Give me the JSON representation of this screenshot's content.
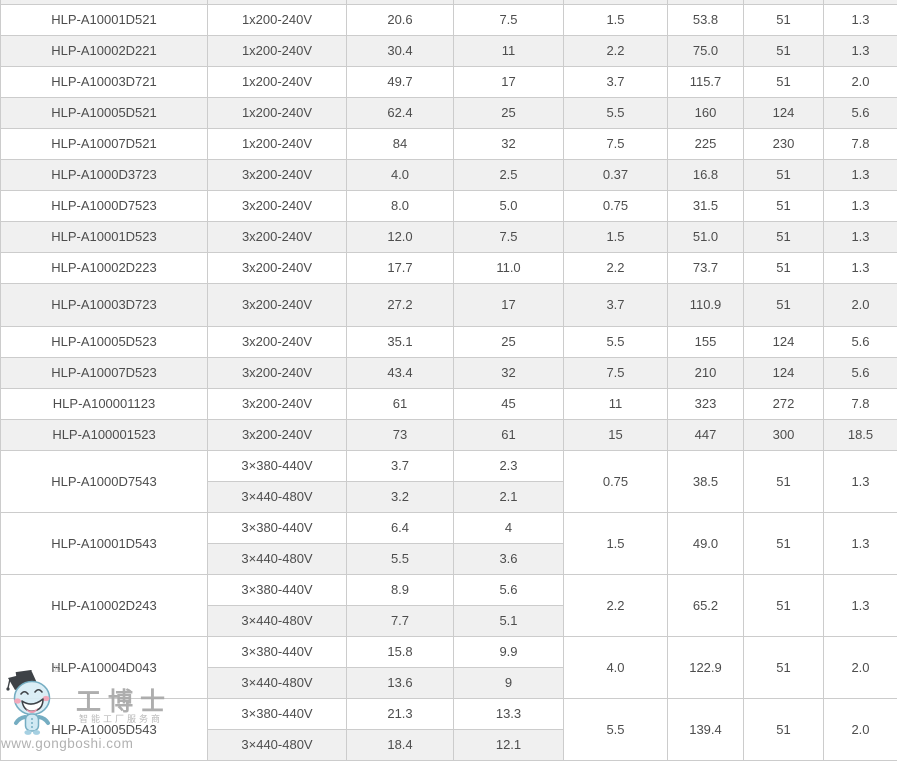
{
  "watermark": {
    "brand": "工博士",
    "slogan": "智能工厂服务商",
    "url": "www.gongboshi.com",
    "registered_mark": "®"
  },
  "table": {
    "rows": [
      {
        "type": "single",
        "model": "HLP-A10001D521",
        "voltage": "1x200-240V",
        "values": [
          "20.6",
          "7.5",
          "1.5",
          "53.8",
          "51",
          "1.3"
        ]
      },
      {
        "type": "single",
        "model": "HLP-A10002D221",
        "voltage": "1x200-240V",
        "values": [
          "30.4",
          "11",
          "2.2",
          "75.0",
          "51",
          "1.3"
        ]
      },
      {
        "type": "single",
        "model": "HLP-A10003D721",
        "voltage": "1x200-240V",
        "values": [
          "49.7",
          "17",
          "3.7",
          "115.7",
          "51",
          "2.0"
        ]
      },
      {
        "type": "single",
        "model": "HLP-A10005D521",
        "voltage": "1x200-240V",
        "values": [
          "62.4",
          "25",
          "5.5",
          "160",
          "124",
          "5.6"
        ]
      },
      {
        "type": "single",
        "model": "HLP-A10007D521",
        "voltage": "1x200-240V",
        "values": [
          "84",
          "32",
          "7.5",
          "225",
          "230",
          "7.8"
        ]
      },
      {
        "type": "single",
        "model": "HLP-A1000D3723",
        "voltage": "3x200-240V",
        "values": [
          "4.0",
          "2.5",
          "0.37",
          "16.8",
          "51",
          "1.3"
        ]
      },
      {
        "type": "single",
        "model": "HLP-A1000D7523",
        "voltage": "3x200-240V",
        "values": [
          "8.0",
          "5.0",
          "0.75",
          "31.5",
          "51",
          "1.3"
        ]
      },
      {
        "type": "single",
        "model": "HLP-A10001D523",
        "voltage": "3x200-240V",
        "values": [
          "12.0",
          "7.5",
          "1.5",
          "51.0",
          "51",
          "1.3"
        ]
      },
      {
        "type": "single",
        "model": "HLP-A10002D223",
        "voltage": "3x200-240V",
        "values": [
          "17.7",
          "11.0",
          "2.2",
          "73.7",
          "51",
          "1.3"
        ]
      },
      {
        "type": "single",
        "model": "HLP-A10003D723",
        "voltage": "3x200-240V",
        "values": [
          "27.2",
          "17",
          "3.7",
          "110.9",
          "51",
          "2.0"
        ],
        "highlight": true
      },
      {
        "type": "single",
        "model": "HLP-A10005D523",
        "voltage": "3x200-240V",
        "values": [
          "35.1",
          "25",
          "5.5",
          "155",
          "124",
          "5.6"
        ]
      },
      {
        "type": "single",
        "model": "HLP-A10007D523",
        "voltage": "3x200-240V",
        "values": [
          "43.4",
          "32",
          "7.5",
          "210",
          "124",
          "5.6"
        ]
      },
      {
        "type": "single",
        "model": "HLP-A100001123",
        "voltage": "3x200-240V",
        "values": [
          "61",
          "45",
          "11",
          "323",
          "272",
          "7.8"
        ]
      },
      {
        "type": "single",
        "model": "HLP-A100001523",
        "voltage": "3x200-240V",
        "values": [
          "73",
          "61",
          "15",
          "447",
          "300",
          "18.5"
        ]
      },
      {
        "type": "group",
        "model": "HLP-A1000D7543",
        "subrows": [
          [
            "3×380-440V",
            "3.7",
            "2.3"
          ],
          [
            "3×440-480V",
            "3.2",
            "2.1"
          ]
        ],
        "merged": [
          "0.75",
          "38.5",
          "51",
          "1.3"
        ]
      },
      {
        "type": "group",
        "model": "HLP-A10001D543",
        "subrows": [
          [
            "3×380-440V",
            "6.4",
            "4"
          ],
          [
            "3×440-480V",
            "5.5",
            "3.6"
          ]
        ],
        "merged": [
          "1.5",
          "49.0",
          "51",
          "1.3"
        ]
      },
      {
        "type": "group",
        "model": "HLP-A10002D243",
        "subrows": [
          [
            "3×380-440V",
            "8.9",
            "5.6"
          ],
          [
            "3×440-480V",
            "7.7",
            "5.1"
          ]
        ],
        "merged": [
          "2.2",
          "65.2",
          "51",
          "1.3"
        ],
        "highlight": true
      },
      {
        "type": "group",
        "model": "HLP-A10004D043",
        "subrows": [
          [
            "3×380-440V",
            "15.8",
            "9.9"
          ],
          [
            "3×440-480V",
            "13.6",
            "9"
          ]
        ],
        "merged": [
          "4.0",
          "122.9",
          "51",
          "2.0"
        ]
      },
      {
        "type": "group",
        "model": "HLP-A10005D543",
        "subrows": [
          [
            "3×380-440V",
            "21.3",
            "13.3"
          ],
          [
            "3×440-480V",
            "18.4",
            "12.1"
          ]
        ],
        "merged": [
          "5.5",
          "139.4",
          "51",
          "2.0"
        ]
      }
    ]
  },
  "colors": {
    "row_alt_bg": "#f0f0f0",
    "border": "#cccccc",
    "text": "#4d4d4d",
    "highlight_text": "#8c8c8c"
  }
}
